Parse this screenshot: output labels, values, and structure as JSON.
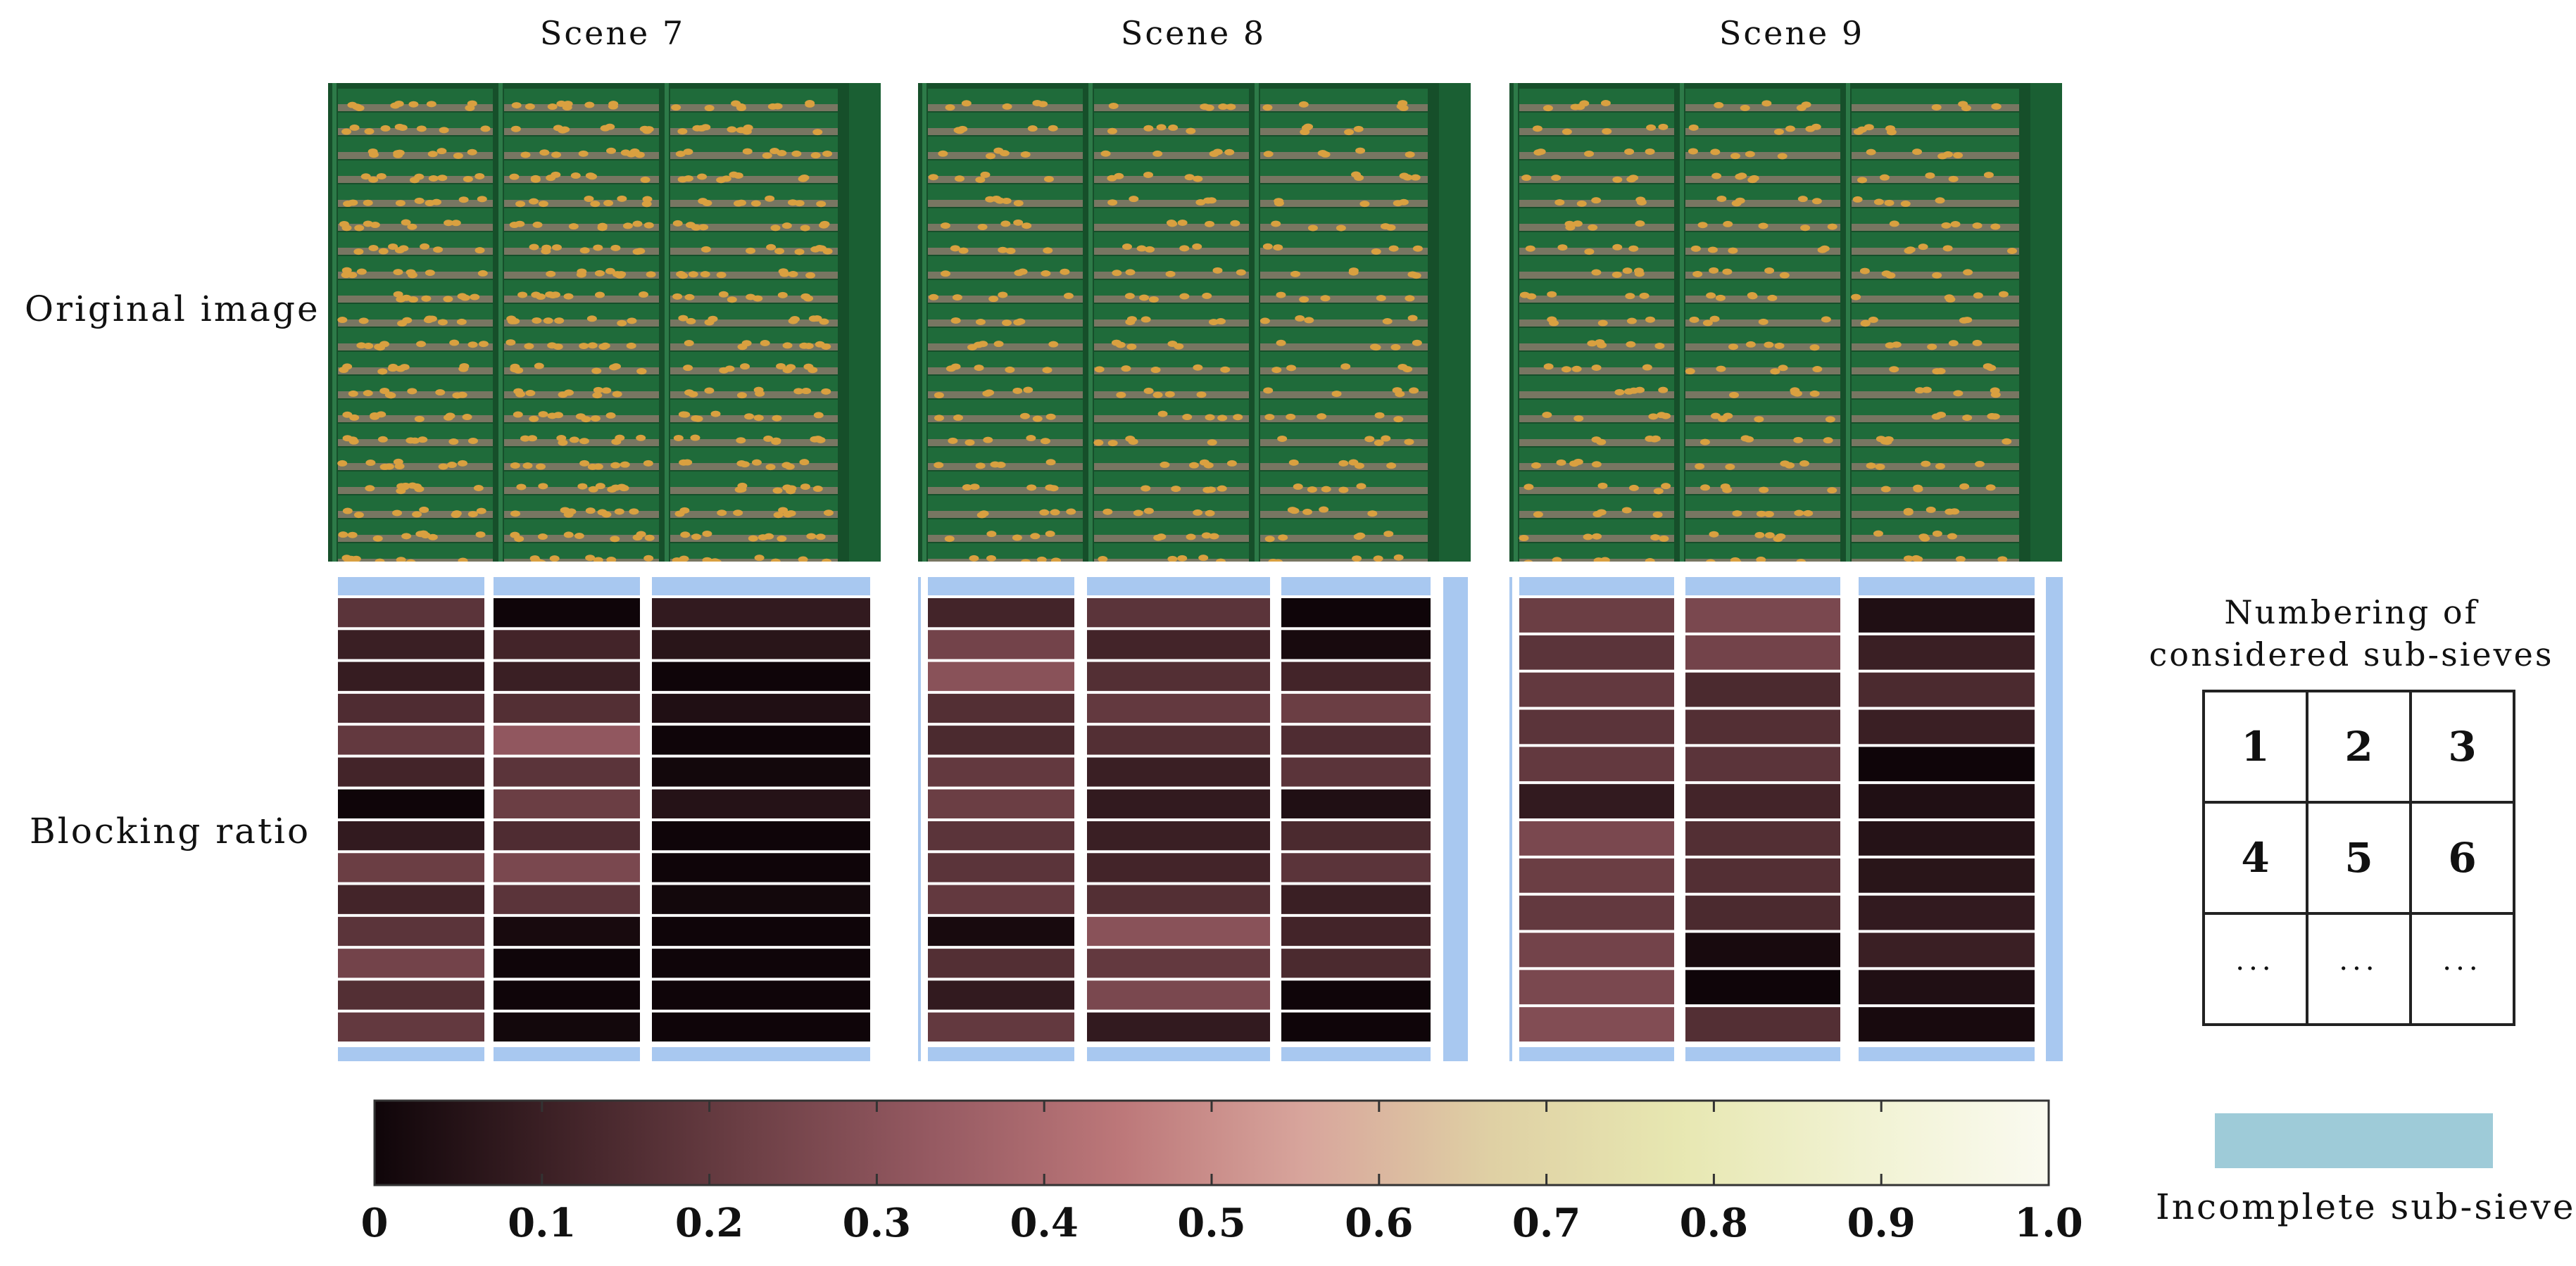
{
  "scenes": [
    {
      "title": "Scene 7"
    },
    {
      "title": "Scene 8"
    },
    {
      "title": "Scene 9"
    }
  ],
  "row_labels": {
    "original": "Original image",
    "blocking": "Blocking ratio"
  },
  "colors": {
    "sieve_green": "#1f6b3a",
    "sieve_dark": "#164f2a",
    "residue": "#8a7d6c",
    "grain": "#d9a040",
    "incomplete": "#a8c8f0",
    "legend_incomplete": "#9ecbd8"
  },
  "heatmaps": [
    {
      "values": [
        [
          0.18,
          0.0,
          0.08
        ],
        [
          0.1,
          0.12,
          0.06
        ],
        [
          0.09,
          0.1,
          0.0
        ],
        [
          0.15,
          0.16,
          0.04
        ],
        [
          0.2,
          0.32,
          0.0
        ],
        [
          0.12,
          0.18,
          0.01
        ],
        [
          0.0,
          0.22,
          0.05
        ],
        [
          0.08,
          0.15,
          0.0
        ],
        [
          0.22,
          0.26,
          0.0
        ],
        [
          0.12,
          0.18,
          0.01
        ],
        [
          0.18,
          0.02,
          0.0
        ],
        [
          0.24,
          0.0,
          0.0
        ],
        [
          0.16,
          0.0,
          0.0
        ],
        [
          0.2,
          0.01,
          0.0
        ]
      ]
    },
    {
      "values": [
        [
          0.12,
          0.18,
          0.0
        ],
        [
          0.24,
          0.12,
          0.02
        ],
        [
          0.3,
          0.16,
          0.12
        ],
        [
          0.16,
          0.2,
          0.22
        ],
        [
          0.14,
          0.16,
          0.15
        ],
        [
          0.2,
          0.1,
          0.18
        ],
        [
          0.22,
          0.08,
          0.04
        ],
        [
          0.18,
          0.1,
          0.14
        ],
        [
          0.18,
          0.12,
          0.18
        ],
        [
          0.2,
          0.16,
          0.1
        ],
        [
          0.02,
          0.3,
          0.12
        ],
        [
          0.16,
          0.2,
          0.14
        ],
        [
          0.08,
          0.26,
          0.0
        ],
        [
          0.2,
          0.08,
          0.0
        ]
      ]
    },
    {
      "values": [
        [
          0.22,
          0.26,
          0.04
        ],
        [
          0.18,
          0.24,
          0.1
        ],
        [
          0.2,
          0.14,
          0.14
        ],
        [
          0.18,
          0.16,
          0.1
        ],
        [
          0.2,
          0.18,
          0.0
        ],
        [
          0.08,
          0.12,
          0.04
        ],
        [
          0.26,
          0.16,
          0.05
        ],
        [
          0.22,
          0.16,
          0.06
        ],
        [
          0.2,
          0.14,
          0.08
        ],
        [
          0.24,
          0.02,
          0.1
        ],
        [
          0.26,
          0.0,
          0.04
        ],
        [
          0.28,
          0.16,
          0.02
        ]
      ]
    }
  ],
  "colorbar": {
    "min": 0,
    "max": 1.0,
    "ticks": [
      "0",
      "0.1",
      "0.2",
      "0.3",
      "0.4",
      "0.5",
      "0.6",
      "0.7",
      "0.8",
      "0.9",
      "1.0"
    ],
    "stops": [
      "#0f0509",
      "#3f2227",
      "#6c3f45",
      "#965a62",
      "#bc7779",
      "#d8a59c",
      "#dfd0a4",
      "#e7e7b1",
      "#f1f2d2",
      "#fafaf0"
    ]
  },
  "legend": {
    "numbering_title_1": "Numbering of",
    "numbering_title_2": "considered sub-sieves",
    "grid": [
      [
        "1",
        "2",
        "3"
      ],
      [
        "4",
        "5",
        "6"
      ],
      [
        "···",
        "···",
        "···"
      ]
    ],
    "incomplete_label": "Incomplete sub-sieve"
  }
}
